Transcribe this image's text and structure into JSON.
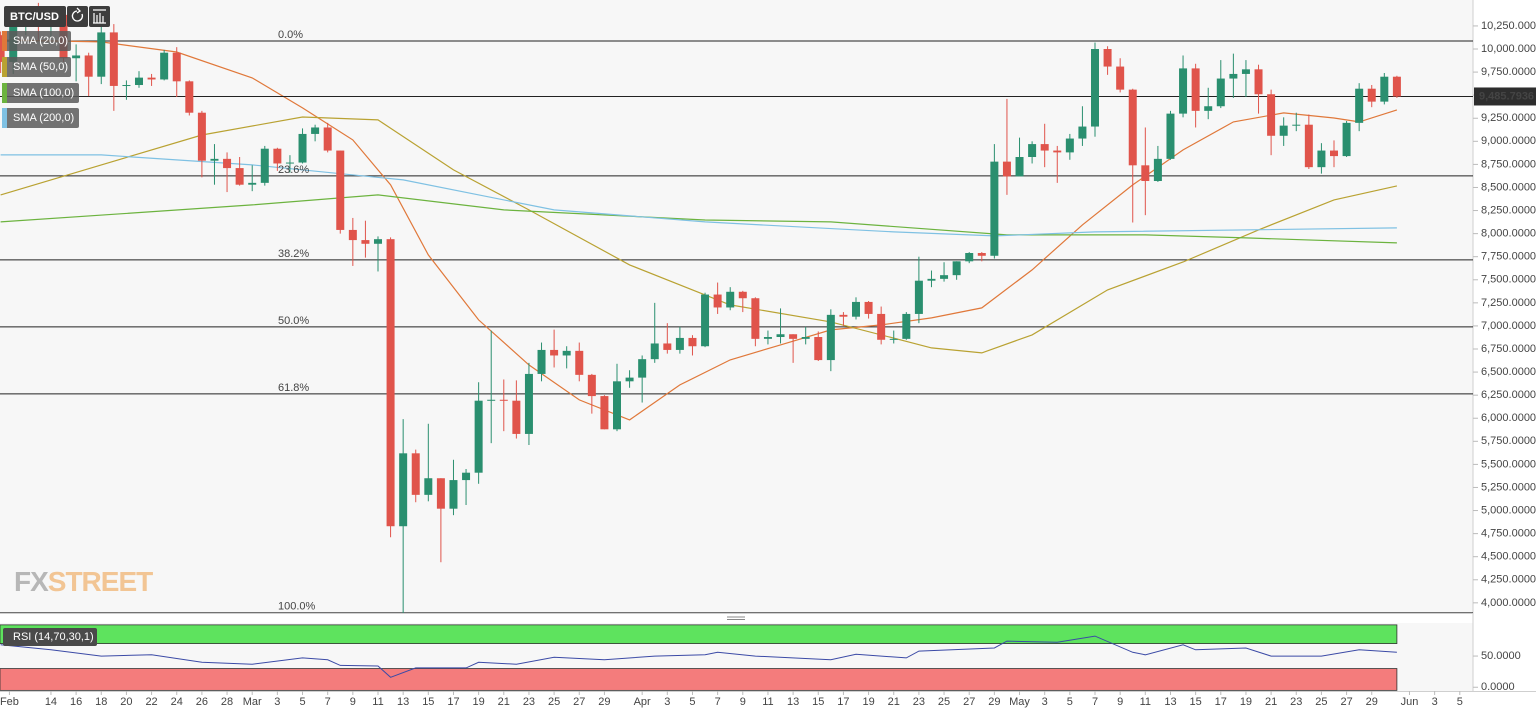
{
  "chart_data": {
    "type": "candlestick",
    "symbol": "BTC/USD",
    "up_color": "#2a8f6f",
    "down_color": "#e0544b",
    "xlim": [
      -0.05,
      117.05
    ],
    "ylim": [
      3890,
      10531
    ],
    "xticks": [
      {
        "value": 0.7,
        "label": "Feb"
      },
      {
        "value": 4,
        "label": "14"
      },
      {
        "value": 6,
        "label": "16"
      },
      {
        "value": 8,
        "label": "18"
      },
      {
        "value": 10,
        "label": "20"
      },
      {
        "value": 12,
        "label": "22"
      },
      {
        "value": 14,
        "label": "24"
      },
      {
        "value": 16,
        "label": "26"
      },
      {
        "value": 18,
        "label": "28"
      },
      {
        "value": 20,
        "label": "Mar"
      },
      {
        "value": 22,
        "label": "3"
      },
      {
        "value": 24,
        "label": "5"
      },
      {
        "value": 26,
        "label": "7"
      },
      {
        "value": 28,
        "label": "9"
      },
      {
        "value": 30,
        "label": "11"
      },
      {
        "value": 32,
        "label": "13"
      },
      {
        "value": 34,
        "label": "15"
      },
      {
        "value": 36,
        "label": "17"
      },
      {
        "value": 38,
        "label": "19"
      },
      {
        "value": 40,
        "label": "21"
      },
      {
        "value": 42,
        "label": "23"
      },
      {
        "value": 44,
        "label": "25"
      },
      {
        "value": 46,
        "label": "27"
      },
      {
        "value": 48,
        "label": "29"
      },
      {
        "value": 51,
        "label": "Apr"
      },
      {
        "value": 53,
        "label": "3"
      },
      {
        "value": 55,
        "label": "5"
      },
      {
        "value": 57,
        "label": "7"
      },
      {
        "value": 59,
        "label": "9"
      },
      {
        "value": 61,
        "label": "11"
      },
      {
        "value": 63,
        "label": "13"
      },
      {
        "value": 65,
        "label": "15"
      },
      {
        "value": 67,
        "label": "17"
      },
      {
        "value": 69,
        "label": "19"
      },
      {
        "value": 71,
        "label": "21"
      },
      {
        "value": 73,
        "label": "23"
      },
      {
        "value": 75,
        "label": "25"
      },
      {
        "value": 77,
        "label": "27"
      },
      {
        "value": 79,
        "label": "29"
      },
      {
        "value": 81,
        "label": "May"
      },
      {
        "value": 83,
        "label": "3"
      },
      {
        "value": 85,
        "label": "5"
      },
      {
        "value": 87,
        "label": "7"
      },
      {
        "value": 89,
        "label": "9"
      },
      {
        "value": 91,
        "label": "11"
      },
      {
        "value": 93,
        "label": "13"
      },
      {
        "value": 95,
        "label": "15"
      },
      {
        "value": 97,
        "label": "17"
      },
      {
        "value": 99,
        "label": "19"
      },
      {
        "value": 101,
        "label": "21"
      },
      {
        "value": 103,
        "label": "23"
      },
      {
        "value": 105,
        "label": "25"
      },
      {
        "value": 107,
        "label": "27"
      },
      {
        "value": 109,
        "label": "29"
      },
      {
        "value": 112,
        "label": "Jun"
      },
      {
        "value": 114,
        "label": "3"
      },
      {
        "value": 116,
        "label": "5"
      }
    ],
    "yticks": [
      {
        "value": 10250,
        "label": "10,250.0000"
      },
      {
        "value": 10000,
        "label": "10,000.0000"
      },
      {
        "value": 9750,
        "label": "9,750.0000"
      },
      {
        "value": 9500,
        "label": "9,500.0000"
      },
      {
        "value": 9250,
        "label": "9,250.0000"
      },
      {
        "value": 9000,
        "label": "9,000.0000"
      },
      {
        "value": 8750,
        "label": "8,750.0000"
      },
      {
        "value": 8500,
        "label": "8,500.0000"
      },
      {
        "value": 8250,
        "label": "8,250.0000"
      },
      {
        "value": 8000,
        "label": "8,000.0000"
      },
      {
        "value": 7750,
        "label": "7,750.0000"
      },
      {
        "value": 7500,
        "label": "7,500.0000"
      },
      {
        "value": 7250,
        "label": "7,250.0000"
      },
      {
        "value": 7000,
        "label": "7,000.0000"
      },
      {
        "value": 6750,
        "label": "6,750.0000"
      },
      {
        "value": 6500,
        "label": "6,500.0000"
      },
      {
        "value": 6250,
        "label": "6,250.0000"
      },
      {
        "value": 6000,
        "label": "6,000.0000"
      },
      {
        "value": 5750,
        "label": "5,750.0000"
      },
      {
        "value": 5500,
        "label": "5,500.0000"
      },
      {
        "value": 5250,
        "label": "5,250.0000"
      },
      {
        "value": 5000,
        "label": "5,000.0000"
      },
      {
        "value": 4750,
        "label": "4,750.0000"
      },
      {
        "value": 4500,
        "label": "4,500.0000"
      },
      {
        "value": 4250,
        "label": "4,250.0000"
      },
      {
        "value": 4000,
        "label": "4,000.0000"
      }
    ],
    "x": [
      0,
      1,
      2,
      3,
      4,
      5,
      6,
      7,
      8,
      9,
      10,
      11,
      12,
      13,
      14,
      15,
      16,
      17,
      18,
      19,
      20,
      21,
      22,
      23,
      24,
      25,
      26,
      27,
      28,
      29,
      30,
      31,
      32,
      33,
      34,
      35,
      36,
      37,
      38,
      39,
      40,
      41,
      42,
      43,
      44,
      45,
      46,
      47,
      48,
      49,
      50,
      51,
      52,
      53,
      54,
      55,
      56,
      57,
      58,
      59,
      60,
      61,
      62,
      63,
      64,
      65,
      66,
      67,
      68,
      69,
      70,
      71,
      72,
      73,
      74,
      75,
      76,
      77,
      78,
      79,
      80,
      81,
      82,
      83,
      84,
      85,
      86,
      87,
      88,
      89,
      90,
      91,
      92,
      93,
      94,
      95,
      96,
      97,
      98,
      99,
      100,
      101,
      102,
      103,
      104,
      105,
      106,
      107,
      108,
      109,
      110,
      111
    ],
    "open": [
      10150,
      9860,
      10270,
      10350,
      10240,
      10370,
      9900,
      9930,
      9700,
      10180,
      9600,
      9610,
      9690,
      9670,
      9960,
      9650,
      9310,
      8790,
      8810,
      8710,
      8530,
      8550,
      8920,
      8760,
      8770,
      9080,
      9150,
      8900,
      8040,
      7930,
      7890,
      7940,
      4830,
      5620,
      5170,
      5350,
      5020,
      5330,
      5410,
      6190,
      6200,
      6190,
      5830,
      6480,
      6740,
      6680,
      6730,
      6470,
      6240,
      5880,
      6400,
      6440,
      6640,
      6810,
      6740,
      6870,
      6780,
      7340,
      7200,
      7370,
      7300,
      6860,
      6880,
      6910,
      6860,
      6880,
      6630,
      7120,
      7100,
      7260,
      7130,
      6850,
      6860,
      7130,
      7490,
      7510,
      7550,
      7700,
      7790,
      7760,
      8780,
      8620,
      8830,
      8970,
      8900,
      8880,
      9030,
      9160,
      10000,
      9810,
      9560,
      8740,
      8570,
      8810,
      9300,
      9790,
      9330,
      9380,
      9680,
      9730,
      9780,
      9510,
      9060,
      9170,
      9180,
      8720,
      8900,
      8840,
      9200,
      9570,
      9430,
      9700
    ],
    "high": [
      10190,
      10290,
      10400,
      10500,
      10390,
      10380,
      10050,
      9960,
      10250,
      10270,
      9660,
      9760,
      9730,
      9990,
      10020,
      9660,
      9330,
      8970,
      8880,
      8830,
      8740,
      8950,
      8930,
      8850,
      9140,
      9180,
      9200,
      8900,
      8170,
      8140,
      7970,
      7960,
      5990,
      5660,
      5940,
      5350,
      5550,
      5450,
      6390,
      6950,
      6420,
      6410,
      6600,
      6820,
      6960,
      6780,
      6820,
      6480,
      6250,
      6590,
      6520,
      6680,
      7250,
      7030,
      6990,
      6900,
      7360,
      7470,
      7420,
      7380,
      7310,
      6950,
      7190,
      6910,
      6990,
      6940,
      7180,
      7150,
      7310,
      7270,
      7210,
      6950,
      7150,
      7750,
      7600,
      7690,
      7700,
      7800,
      7800,
      8970,
      9460,
      9040,
      9000,
      9190,
      8950,
      9080,
      9380,
      10070,
      10030,
      9900,
      9570,
      9150,
      8950,
      9330,
      9930,
      9840,
      9580,
      9880,
      9950,
      9880,
      9830,
      9560,
      9260,
      9310,
      9290,
      8980,
      9010,
      9220,
      9630,
      9610,
      9740,
      9710
    ],
    "low": [
      9740,
      9730,
      10150,
      10100,
      10130,
      9860,
      9650,
      9490,
      9620,
      9330,
      9450,
      9580,
      9600,
      9660,
      9480,
      9280,
      8610,
      8530,
      8450,
      8520,
      8460,
      8520,
      8680,
      8660,
      8760,
      9000,
      8880,
      8000,
      7650,
      7740,
      7590,
      4710,
      3860,
      5090,
      5100,
      4440,
      4950,
      5060,
      5290,
      5730,
      5860,
      5780,
      5710,
      6400,
      6550,
      6540,
      6400,
      6050,
      5880,
      5860,
      6330,
      6170,
      6600,
      6700,
      6700,
      6680,
      6770,
      7130,
      7170,
      7150,
      6780,
      6800,
      6810,
      6600,
      6800,
      6620,
      6510,
      7000,
      7070,
      7080,
      6800,
      6810,
      6850,
      7030,
      7420,
      7480,
      7500,
      7680,
      7700,
      7730,
      8420,
      8620,
      8760,
      8720,
      8550,
      8800,
      8950,
      9050,
      9720,
      9530,
      8120,
      8200,
      8560,
      8800,
      9260,
      9150,
      9240,
      9360,
      9470,
      9480,
      9300,
      8850,
      8950,
      9110,
      8700,
      8650,
      8720,
      8830,
      9110,
      9370,
      9400,
      9470
    ],
    "close": [
      9860,
      10270,
      10350,
      10240,
      10370,
      9900,
      9930,
      9700,
      10180,
      9600,
      9610,
      9690,
      9670,
      9960,
      9650,
      9310,
      8790,
      8810,
      8710,
      8530,
      8550,
      8920,
      8760,
      8770,
      9080,
      9150,
      8900,
      8040,
      7930,
      7890,
      7940,
      4830,
      5620,
      5170,
      5350,
      5020,
      5330,
      5410,
      6190,
      6200,
      6190,
      5830,
      6480,
      6740,
      6680,
      6730,
      6470,
      6240,
      5880,
      6400,
      6440,
      6640,
      6810,
      6740,
      6870,
      6780,
      7340,
      7200,
      7370,
      7300,
      6860,
      6880,
      6910,
      6860,
      6880,
      6630,
      7120,
      7100,
      7260,
      7130,
      6850,
      6860,
      7130,
      7490,
      7510,
      7550,
      7700,
      7790,
      7760,
      8780,
      8620,
      8830,
      8970,
      8900,
      8880,
      9030,
      9160,
      10000,
      9810,
      9560,
      8740,
      8570,
      8810,
      9300,
      9790,
      9330,
      9380,
      9680,
      9730,
      9780,
      9510,
      9060,
      9170,
      9180,
      8720,
      8900,
      8840,
      9200,
      9570,
      9430,
      9700,
      9485.7936
    ],
    "series": [
      {
        "name": "SMA (20,0)",
        "color": "#e0783a",
        "x": [
          0,
          8,
          14,
          20,
          24,
          28,
          31,
          34,
          38,
          42,
          46,
          50,
          54,
          58,
          62,
          66,
          70,
          74,
          78,
          82,
          86,
          90,
          94,
          98,
          102,
          106,
          108,
          111
        ],
        "values": [
          10098,
          10077,
          9968,
          9687,
          9362,
          9015,
          8528,
          7769,
          7065,
          6578,
          6199,
          5982,
          6361,
          6632,
          6794,
          6957,
          7011,
          7087,
          7195,
          7607,
          8094,
          8528,
          8907,
          9210,
          9308,
          9253,
          9210,
          9340
        ]
      },
      {
        "name": "SMA (50,0)",
        "color": "#b9a232",
        "x": [
          0,
          8,
          16,
          24,
          30,
          36,
          42,
          50,
          58,
          66,
          74,
          78,
          82,
          88,
          94,
          100,
          106,
          111
        ],
        "values": [
          8419,
          8744,
          9069,
          9264,
          9232,
          8690,
          8257,
          7661,
          7228,
          7044,
          6762,
          6708,
          6903,
          7390,
          7693,
          8040,
          8365,
          8517
        ]
      },
      {
        "name": "SMA (100,0)",
        "color": "#6cb33f",
        "x": [
          0,
          20,
          30,
          40,
          56,
          66,
          80,
          91,
          99,
          111
        ],
        "values": [
          8127,
          8311,
          8419,
          8257,
          8148,
          8127,
          7986,
          7986,
          7954,
          7899
        ]
      },
      {
        "name": "SMA (200,0)",
        "color": "#7fc1e3",
        "x": [
          0,
          8,
          20,
          32,
          44,
          56,
          71,
          79,
          87,
          111
        ],
        "values": [
          8853,
          8853,
          8744,
          8582,
          8257,
          8127,
          8019,
          7975,
          8019,
          8062
        ]
      }
    ],
    "fib_levels": [
      {
        "label": "0.0%",
        "value": 10087
      },
      {
        "label": "23.6%",
        "value": 8625
      },
      {
        "label": "38.2%",
        "value": 7715
      },
      {
        "label": "50.0%",
        "value": 6990
      },
      {
        "label": "61.8%",
        "value": 6264
      },
      {
        "label": "100.0%",
        "value": 3892
      }
    ],
    "last_price": {
      "value": 9485.7936,
      "label": "9,485.7936"
    },
    "watermark": [
      "FX",
      "STREET"
    ],
    "rsi": {
      "name": "RSI (14,70,30,1)",
      "color": "#3b4aa6",
      "ylim": [
        -6,
        103
      ],
      "yticks": [
        {
          "value": 50,
          "label": "50.0000"
        },
        {
          "value": 0,
          "label": "0.0000"
        }
      ],
      "upper_band": [
        70,
        100
      ],
      "lower_band": [
        -5,
        30
      ],
      "upper_color": "#5ee35e",
      "lower_color": "#f47c7c",
      "x": [
        0,
        4,
        8,
        12,
        16,
        20,
        24,
        26,
        27,
        30,
        31,
        33,
        37,
        38,
        41,
        44,
        48,
        52,
        56,
        57,
        60,
        66,
        68,
        72,
        73,
        79,
        80,
        84,
        87,
        90,
        91,
        94,
        95,
        99,
        101,
        105,
        108,
        111
      ],
      "values": [
        68,
        60,
        50,
        52,
        40,
        37,
        47,
        44,
        35,
        34,
        16,
        31,
        31,
        40,
        37,
        48,
        44,
        50,
        52,
        56,
        50,
        44,
        53,
        47,
        58,
        63,
        74,
        72,
        82,
        56,
        52,
        68,
        60,
        63,
        50,
        50,
        60,
        56
      ]
    }
  }
}
